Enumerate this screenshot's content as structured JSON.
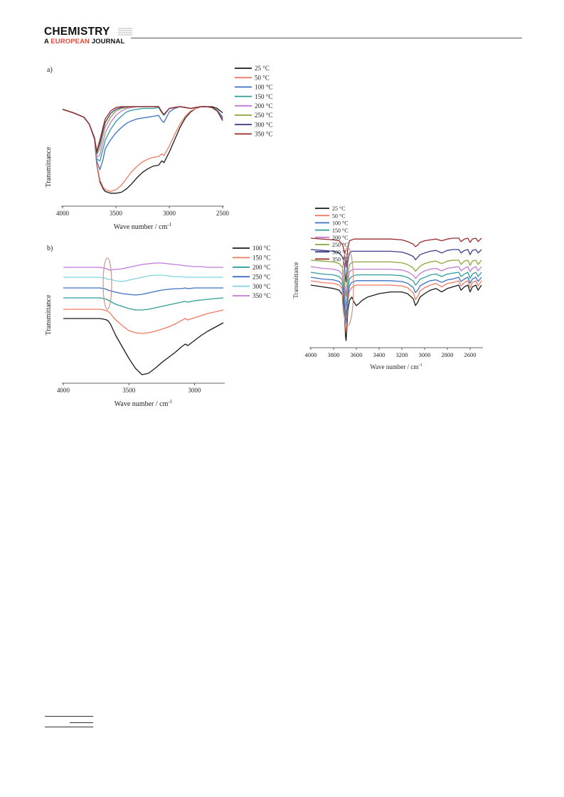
{
  "header": {
    "journal_name": "CHEMISTRY",
    "subtitle_prefix": "A ",
    "subtitle_highlight": "EUROPEAN",
    "subtitle_suffix": " JOURNAL"
  },
  "colors": {
    "25": "#1a1a1a",
    "50": "#f07a62",
    "100": "#3d6fc4",
    "150": "#2f9c9c",
    "200": "#c07ad6",
    "250": "#8aa63a",
    "300": "#3b3f8a",
    "350": "#9a2a2a",
    "ellipse": "#c9948a"
  },
  "chart_data": [
    {
      "id": "a",
      "panel_label": "a)",
      "type": "line",
      "xlabel": "Wave number / cm",
      "xlabel_sup": "-1",
      "ylabel": "Transmittance",
      "x_ticks": [
        "4000",
        "3500",
        "3000",
        "2500"
      ],
      "xlim": [
        4000,
        2500
      ],
      "legend_position": "top-right",
      "x": [
        4000,
        3900,
        3800,
        3750,
        3700,
        3680,
        3650,
        3620,
        3600,
        3550,
        3500,
        3450,
        3400,
        3350,
        3300,
        3250,
        3200,
        3150,
        3100,
        3070,
        3050,
        3000,
        2950,
        2900,
        2850,
        2800,
        2750,
        2700,
        2650,
        2600,
        2550,
        2500
      ],
      "series": [
        {
          "name": " 25 °C",
          "key": "25",
          "values": [
            97,
            93,
            88,
            80,
            62,
            34,
            14,
            6,
            3,
            1,
            1,
            2,
            6,
            12,
            19,
            25,
            29,
            32,
            33,
            38,
            36,
            48,
            62,
            76,
            87,
            94,
            98,
            100,
            100,
            100,
            98,
            93
          ]
        },
        {
          "name": " 50 °C",
          "key": "50",
          "values": [
            97,
            93,
            88,
            80,
            62,
            35,
            16,
            8,
            5,
            3,
            5,
            10,
            18,
            26,
            32,
            37,
            40,
            42,
            43,
            46,
            44,
            55,
            68,
            80,
            89,
            95,
            98,
            100,
            100,
            99,
            96,
            88
          ]
        },
        {
          "name": "100 °C",
          "key": "100",
          "values": [
            97,
            93,
            88,
            80,
            63,
            38,
            28,
            40,
            52,
            62,
            70,
            76,
            81,
            84,
            86,
            87,
            88,
            89,
            90,
            84,
            82,
            94,
            98,
            100,
            99,
            98,
            99,
            100,
            100,
            99,
            96,
            88
          ]
        },
        {
          "name": "150 °C",
          "key": "150",
          "values": [
            97,
            93,
            88,
            80,
            63,
            40,
            38,
            52,
            62,
            74,
            83,
            89,
            94,
            96,
            97,
            98,
            98,
            98,
            99,
            93,
            90,
            98,
            99,
            100,
            99,
            98,
            99,
            100,
            100,
            99,
            96,
            87
          ]
        },
        {
          "name": "200 °C",
          "key": "200",
          "values": [
            97,
            93,
            88,
            80,
            63,
            42,
            45,
            60,
            70,
            82,
            90,
            95,
            98,
            99,
            100,
            100,
            100,
            100,
            100,
            94,
            91,
            98,
            99,
            100,
            99,
            98,
            99,
            100,
            100,
            99,
            95,
            86
          ]
        },
        {
          "name": "250 °C",
          "key": "250",
          "values": [
            97,
            93,
            88,
            80,
            64,
            45,
            52,
            68,
            77,
            88,
            95,
            98,
            99,
            100,
            100,
            100,
            100,
            100,
            100,
            94,
            91,
            98,
            99,
            100,
            99,
            98,
            99,
            100,
            100,
            99,
            95,
            85
          ]
        },
        {
          "name": "300 °C",
          "key": "300",
          "values": [
            97,
            93,
            88,
            80,
            64,
            47,
            58,
            73,
            82,
            92,
            97,
            99,
            100,
            100,
            100,
            100,
            100,
            100,
            100,
            94,
            91,
            98,
            99,
            100,
            99,
            98,
            99,
            100,
            100,
            99,
            95,
            85
          ]
        },
        {
          "name": "350 °C",
          "key": "350",
          "values": [
            97,
            93,
            88,
            80,
            64,
            49,
            62,
            77,
            86,
            95,
            99,
            100,
            100,
            100,
            100,
            100,
            100,
            100,
            100,
            94,
            91,
            98,
            99,
            100,
            99,
            98,
            99,
            100,
            100,
            99,
            95,
            84
          ]
        }
      ]
    },
    {
      "id": "b",
      "panel_label": "b)",
      "type": "line",
      "xlabel": "Wave number / cm",
      "xlabel_sup": "-1",
      "ylabel": "Transmittance",
      "x_ticks": [
        "4000",
        "3500",
        "3000"
      ],
      "xlim": [
        4000,
        2780
      ],
      "legend_position": "top-right",
      "x": [
        4000,
        3800,
        3720,
        3690,
        3670,
        3660,
        3640,
        3620,
        3600,
        3550,
        3500,
        3450,
        3400,
        3350,
        3300,
        3250,
        3200,
        3150,
        3100,
        3070,
        3050,
        3000,
        2950,
        2900,
        2850,
        2780
      ],
      "series": [
        {
          "name": "100 °C",
          "key": "25",
          "values": [
            0,
            0,
            0,
            -1,
            -2,
            -3,
            -8,
            -16,
            -24,
            -40,
            -56,
            -70,
            -79,
            -77,
            -70,
            -62,
            -55,
            -48,
            -40,
            -36,
            -38,
            -31,
            -24,
            -18,
            -13,
            -6
          ]
        },
        {
          "name": "150 °C",
          "key": "50",
          "values": [
            0,
            0,
            0,
            -1,
            -2,
            -3,
            -6,
            -11,
            -15,
            -23,
            -30,
            -33,
            -34,
            -33,
            -31,
            -28,
            -25,
            -21,
            -16,
            -13,
            -15,
            -12,
            -9,
            -6,
            -4,
            -1
          ]
        },
        {
          "name": "200 °C",
          "key": "150",
          "values": [
            0,
            0,
            0,
            -1,
            -2,
            -3,
            -5,
            -7,
            -9,
            -12,
            -15,
            -17,
            -17,
            -16,
            -14,
            -12,
            -10,
            -8,
            -6,
            -5,
            -6,
            -4,
            -3,
            -2,
            -1,
            0
          ]
        },
        {
          "name": "250 °C",
          "key": "100",
          "values": [
            0,
            0,
            0,
            -1,
            -2,
            -3,
            -4,
            -5,
            -6,
            -8,
            -9,
            -10,
            -9,
            -7,
            -5,
            -3,
            -2,
            -1,
            -1,
            0,
            -1,
            0,
            0,
            0,
            0,
            0
          ]
        },
        {
          "name": "300 °C",
          "key": "cyan",
          "values": [
            0,
            0,
            0,
            -1,
            -2,
            -3,
            -3,
            -4,
            -5,
            -6,
            -4,
            -2,
            0,
            2,
            3,
            3,
            2,
            1,
            1,
            0,
            0,
            0,
            0,
            0,
            0,
            0
          ]
        },
        {
          "name": "350 °C",
          "key": "200",
          "values": [
            0,
            0,
            0,
            -1,
            -2,
            -3,
            -4,
            -3,
            -3,
            -2,
            0,
            2,
            4,
            5,
            6,
            6,
            5,
            4,
            3,
            2,
            2,
            1,
            1,
            0,
            0,
            0
          ]
        }
      ]
    },
    {
      "id": "c",
      "panel_label": "",
      "type": "line",
      "xlabel": "Wave number / cm",
      "xlabel_sup": "-1",
      "ylabel": "Transmittance",
      "x_ticks": [
        "4000",
        "3800",
        "3600",
        "3400",
        "3200",
        "3000",
        "2800",
        "2600"
      ],
      "xlim": [
        4000,
        2500
      ],
      "legend_position": "top-right",
      "x": [
        4000,
        3900,
        3800,
        3750,
        3720,
        3705,
        3695,
        3690,
        3685,
        3675,
        3660,
        3640,
        3620,
        3600,
        3580,
        3550,
        3500,
        3400,
        3300,
        3200,
        3150,
        3100,
        3080,
        3060,
        3040,
        3000,
        2950,
        2900,
        2850,
        2800,
        2750,
        2700,
        2680,
        2650,
        2620,
        2600,
        2580,
        2550,
        2530,
        2500
      ],
      "series": [
        {
          "name": " 25 °C",
          "key": "25",
          "values": [
            0,
            -2,
            -4,
            -6,
            -12,
            -30,
            -60,
            -65,
            -55,
            -30,
            -18,
            -14,
            -20,
            -24,
            -22,
            -18,
            -14,
            -10,
            -8,
            -8,
            -10,
            -16,
            -24,
            -20,
            -14,
            -10,
            -6,
            -4,
            -8,
            -4,
            -2,
            0,
            -6,
            -2,
            0,
            -8,
            -2,
            0,
            -6,
            0
          ]
        },
        {
          "name": " 50 °C",
          "key": "50",
          "values": [
            0,
            -2,
            -3,
            -5,
            -10,
            -28,
            -55,
            -60,
            -50,
            -25,
            -12,
            -8,
            -6,
            -5,
            -5,
            -5,
            -5,
            -5,
            -5,
            -6,
            -8,
            -14,
            -22,
            -18,
            -12,
            -8,
            -5,
            -3,
            -7,
            -3,
            -2,
            0,
            -6,
            -2,
            0,
            -8,
            -2,
            0,
            -6,
            0
          ]
        },
        {
          "name": "100 °C",
          "key": "100",
          "values": [
            0,
            -2,
            -3,
            -5,
            -10,
            -26,
            -50,
            -55,
            -45,
            -22,
            -10,
            -6,
            -5,
            -4,
            -4,
            -4,
            -4,
            -4,
            -4,
            -5,
            -7,
            -12,
            -18,
            -15,
            -10,
            -7,
            -4,
            -3,
            -6,
            -3,
            -2,
            0,
            -5,
            -2,
            0,
            -7,
            -2,
            0,
            -5,
            0
          ]
        },
        {
          "name": "150 °C",
          "key": "150",
          "values": [
            0,
            -2,
            -3,
            -5,
            -10,
            -24,
            -46,
            -50,
            -42,
            -20,
            -8,
            -5,
            -4,
            -3,
            -3,
            -3,
            -3,
            -3,
            -3,
            -4,
            -6,
            -10,
            -15,
            -12,
            -8,
            -6,
            -3,
            -2,
            -5,
            -2,
            -1,
            0,
            -5,
            -2,
            0,
            -7,
            -2,
            0,
            -5,
            0
          ]
        },
        {
          "name": "200 °C",
          "key": "200",
          "values": [
            0,
            -2,
            -3,
            -5,
            -10,
            -22,
            -42,
            -46,
            -38,
            -18,
            -6,
            -4,
            -3,
            -3,
            -3,
            -3,
            -3,
            -3,
            -3,
            -4,
            -6,
            -10,
            -14,
            -11,
            -8,
            -5,
            -3,
            -2,
            -5,
            -2,
            -1,
            0,
            -5,
            -2,
            0,
            -6,
            -2,
            0,
            -5,
            0
          ]
        },
        {
          "name": "250 °C",
          "key": "250",
          "values": [
            0,
            -1,
            -2,
            -4,
            -9,
            -20,
            -38,
            -42,
            -34,
            -16,
            -5,
            -3,
            -2,
            -2,
            -2,
            -2,
            -2,
            -2,
            -2,
            -3,
            -5,
            -9,
            -13,
            -10,
            -7,
            -4,
            -2,
            -1,
            -4,
            -1,
            0,
            0,
            -5,
            -1,
            0,
            -6,
            -1,
            0,
            -5,
            0
          ]
        },
        {
          "name": "300 °C",
          "key": "300",
          "values": [
            0,
            -1,
            -2,
            -4,
            -9,
            -18,
            -34,
            -38,
            -30,
            -14,
            -4,
            -2,
            -2,
            -2,
            -2,
            -2,
            -2,
            -2,
            -2,
            -3,
            -5,
            -8,
            -12,
            -9,
            -6,
            -4,
            -2,
            -1,
            -4,
            -1,
            0,
            0,
            -4,
            -1,
            0,
            -6,
            -1,
            0,
            -4,
            0
          ]
        },
        {
          "name": "350 °C",
          "key": "350",
          "values": [
            0,
            -1,
            -2,
            -3,
            -8,
            -16,
            -30,
            -34,
            -27,
            -12,
            -3,
            -2,
            -1,
            -1,
            -1,
            -1,
            -1,
            -1,
            -1,
            -2,
            -4,
            -7,
            -10,
            -8,
            -5,
            -3,
            -2,
            -1,
            -3,
            -1,
            0,
            0,
            -4,
            -1,
            0,
            -5,
            -1,
            0,
            -4,
            0
          ]
        }
      ]
    }
  ]
}
